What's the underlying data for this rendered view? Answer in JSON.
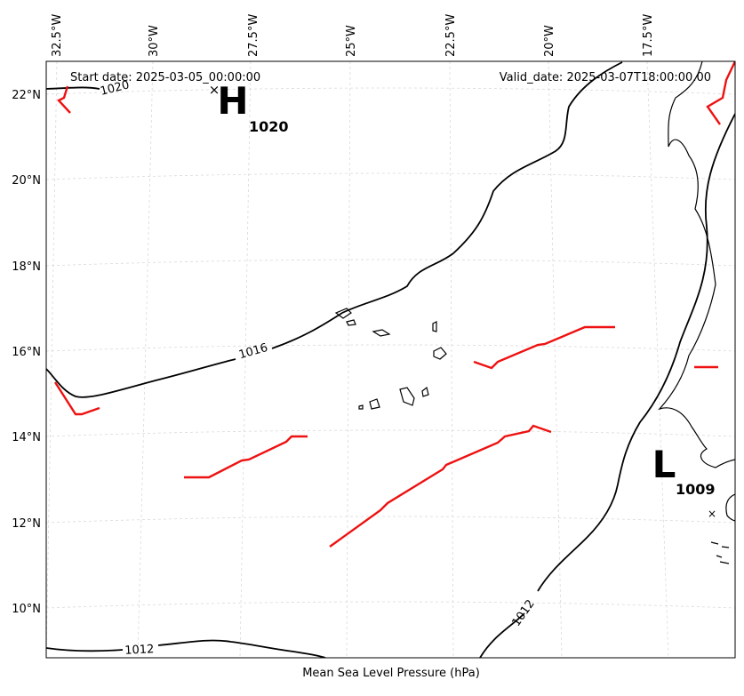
{
  "map": {
    "start_date": "Start date: 2025-03-05_00:00:00",
    "valid_date": "Valid_date: 2025-03-07T18:00:00.00",
    "xlabel": "Mean Sea Level Pressure (hPa)",
    "lon_labels": [
      "32.5°W",
      "30°W",
      "27.5°W",
      "25°W",
      "22.5°W",
      "20°W",
      "17.5°W"
    ],
    "lat_labels": [
      "22°N",
      "20°N",
      "18°N",
      "16°N",
      "14°N",
      "12°N",
      "10°N"
    ],
    "contour_labels": [
      "1016",
      "1012",
      "1012",
      "1020"
    ],
    "high": {
      "letter": "H",
      "value": "1020"
    },
    "low": {
      "letter": "L",
      "value": "1009"
    },
    "colors": {
      "isobar": "#000000",
      "front": "#ee1111",
      "grid": "#d9d9d9"
    }
  }
}
